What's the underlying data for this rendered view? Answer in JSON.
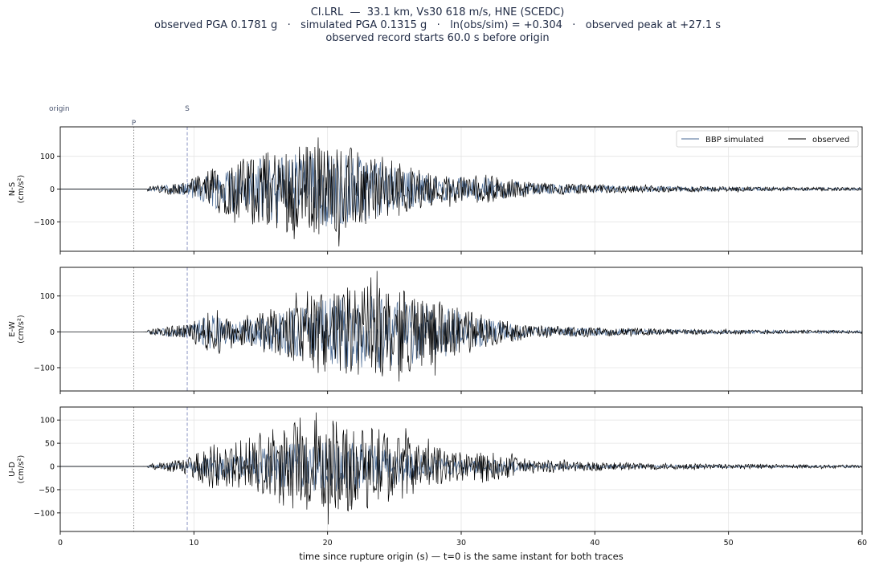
{
  "chart_data": {
    "type": "line",
    "title": "CI.LRL  —  33.1 km, Vs30 618 m/s, HNE (SCEDC)",
    "subtitle_1": "observed PGA 0.1781 g   ·   simulated PGA 0.1315 g   ·   ln(obs/sim) = +0.304   ·   observed peak at +27.1 s",
    "subtitle_2": "observed record starts 60.0 s before origin",
    "xlabel": "time since rupture origin (s)   —   t=0 is the same instant for both traces",
    "xlim": [
      0,
      60
    ],
    "x_ticks": [
      "0",
      "10",
      "20",
      "30",
      "40",
      "50",
      "60"
    ],
    "grid": true,
    "legend": {
      "placement": "top-right",
      "entries": [
        "BBP simulated",
        "observed"
      ]
    },
    "series_colors": {
      "BBP simulated": "#4a6a94",
      "observed": "#000000"
    },
    "markers": [
      {
        "label": "origin",
        "t": 0
      },
      {
        "label": "P",
        "t": 5.5
      },
      {
        "label": "S",
        "t": 9.5
      }
    ],
    "panels": [
      {
        "ylabel_1": "N-S",
        "ylabel_2": "(cm/s²)",
        "ylim": [
          -190,
          190
        ],
        "y_ticks": [
          {
            "label": "100",
            "value": 100
          },
          {
            "label": "0",
            "value": 0
          },
          {
            "label": "−100",
            "value": -100
          }
        ],
        "observed_peak_abs": 175,
        "simulated_peak_abs": 130,
        "envelope_peak_t": 19.0
      },
      {
        "ylabel_1": "E-W",
        "ylabel_2": "(cm/s²)",
        "ylim": [
          -165,
          180
        ],
        "y_ticks": [
          {
            "label": "100",
            "value": 100
          },
          {
            "label": "0",
            "value": 0
          },
          {
            "label": "−100",
            "value": -100
          }
        ],
        "observed_peak_abs": 170,
        "simulated_peak_abs": 120,
        "envelope_peak_t": 23.0
      },
      {
        "ylabel_1": "U-D",
        "ylabel_2": "(cm/s²)",
        "ylim": [
          -140,
          128
        ],
        "y_ticks": [
          {
            "label": "100",
            "value": 100
          },
          {
            "label": "50",
            "value": 50
          },
          {
            "label": "0",
            "value": 0
          },
          {
            "label": "−50",
            "value": -50
          },
          {
            "label": "−100",
            "value": -100
          }
        ],
        "observed_peak_abs": 125,
        "simulated_peak_abs": 60,
        "envelope_peak_t": 20.0
      }
    ]
  }
}
